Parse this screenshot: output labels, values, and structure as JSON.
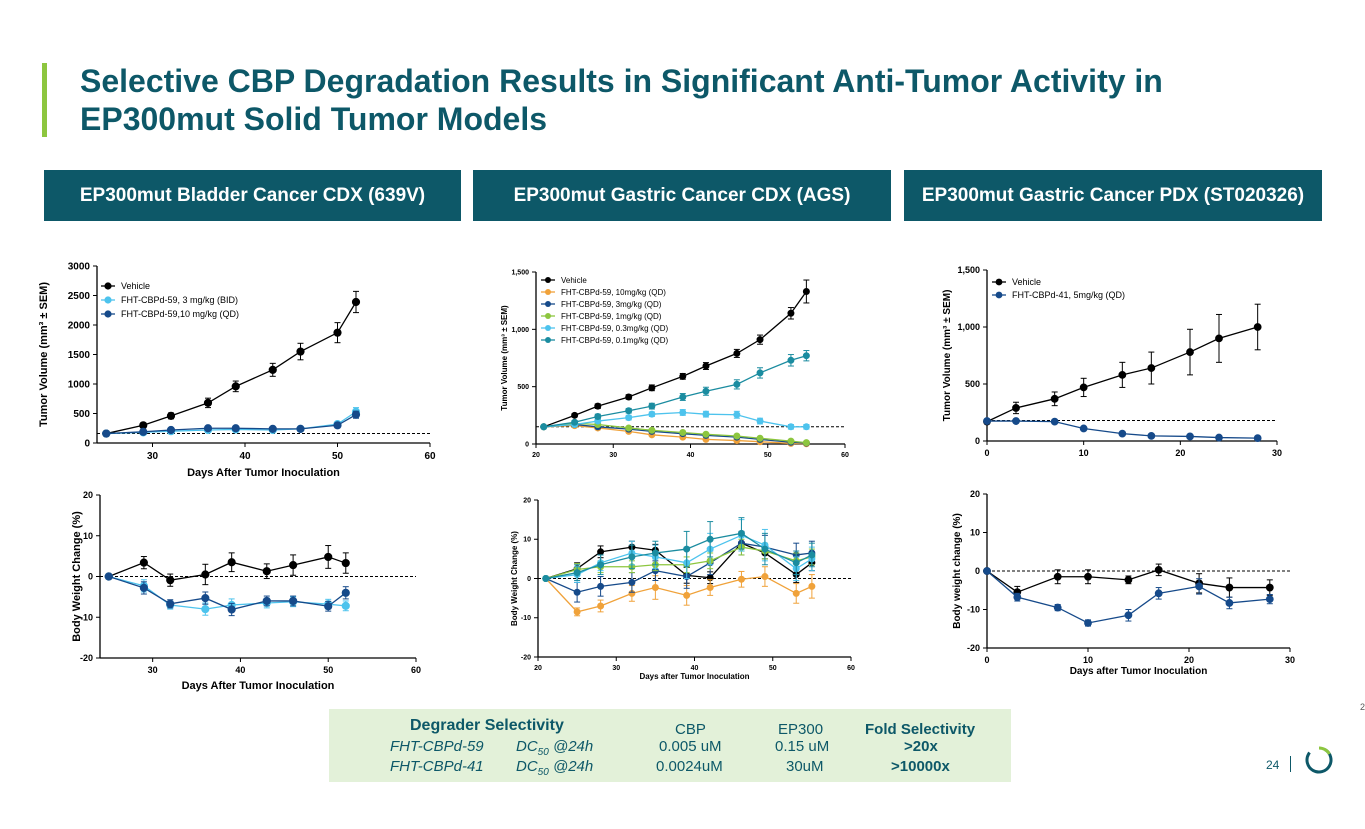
{
  "title": "Selective CBP Degradation Results in Significant Anti-Tumor Activity in EP300mut Solid Tumor Models",
  "panels": [
    {
      "header": "EP300mut Bladder Cancer CDX (639V)"
    },
    {
      "header": "EP300mut Gastric Cancer CDX (AGS)"
    },
    {
      "header": "EP300mut Gastric Cancer PDX (ST020326)"
    }
  ],
  "chart_data": [
    {
      "id": "c1",
      "type": "line",
      "ylabel": "Tumor Volume (mm³ ± SEM)",
      "xlabel": "Days After Tumor Inoculation",
      "xlim": [
        24,
        60
      ],
      "xticks": [
        30,
        40,
        50,
        60
      ],
      "ylim": [
        0,
        3000
      ],
      "yticks": [
        0,
        500,
        1000,
        1500,
        2000,
        2500,
        3000
      ],
      "ytick_labels": [
        "0",
        "500",
        "1000",
        "1500",
        "2000",
        "2500",
        "3000"
      ],
      "baseline": 160,
      "legend": "top-left",
      "series": [
        {
          "name": "Vehicle",
          "color": "#000000",
          "x": [
            25,
            29,
            32,
            36,
            39,
            43,
            46,
            50,
            52
          ],
          "y": [
            160,
            300,
            460,
            680,
            960,
            1240,
            1550,
            1870,
            2390
          ],
          "err": [
            20,
            40,
            50,
            80,
            90,
            110,
            140,
            170,
            180
          ]
        },
        {
          "name": "FHT-CBPd-59, 3 mg/kg (BID)",
          "color": "#4dc3ed",
          "x": [
            25,
            29,
            32,
            36,
            39,
            43,
            46,
            50,
            52
          ],
          "y": [
            160,
            180,
            200,
            220,
            230,
            220,
            240,
            320,
            530
          ],
          "err": [
            20,
            20,
            25,
            30,
            30,
            30,
            30,
            40,
            70
          ]
        },
        {
          "name": "FHT-CBPd-59,10 mg/kg (QD)",
          "color": "#164a8a",
          "x": [
            25,
            29,
            32,
            36,
            39,
            43,
            46,
            50,
            52
          ],
          "y": [
            160,
            190,
            220,
            250,
            250,
            240,
            240,
            300,
            480
          ],
          "err": [
            20,
            20,
            30,
            30,
            30,
            30,
            30,
            40,
            60
          ]
        }
      ]
    },
    {
      "id": "c2",
      "type": "line",
      "ylabel": "Body Weight Change (%)",
      "xlabel": "Days After Tumor Inoculation",
      "xlim": [
        24,
        60
      ],
      "xticks": [
        30,
        40,
        50,
        60
      ],
      "ylim": [
        -20,
        20
      ],
      "yticks": [
        -20,
        -10,
        0,
        10,
        20
      ],
      "ytick_labels": [
        "-20",
        "-10",
        "0",
        "10",
        "20"
      ],
      "baseline": 0,
      "series": [
        {
          "name": "Vehicle",
          "color": "#000000",
          "x": [
            25,
            29,
            32,
            36,
            39,
            43,
            46,
            50,
            52
          ],
          "y": [
            0,
            3.4,
            -0.9,
            0.5,
            3.5,
            1.3,
            2.8,
            4.8,
            3.3
          ],
          "err": [
            0,
            1.5,
            1.5,
            2.5,
            2.3,
            1.8,
            2.5,
            2.8,
            2.5
          ]
        },
        {
          "name": "FHT-CBPd-59, 3 mg/kg (BID)",
          "color": "#4dc3ed",
          "x": [
            25,
            29,
            32,
            36,
            39,
            43,
            46,
            50,
            52
          ],
          "y": [
            0,
            -2.3,
            -7.0,
            -8.0,
            -7.0,
            -6.5,
            -6.2,
            -6.8,
            -7.2
          ],
          "err": [
            0,
            1.5,
            1.0,
            1.5,
            1.5,
            1.2,
            1.2,
            1.2,
            1.2
          ]
        },
        {
          "name": "FHT-CBPd-59,10 mg/kg (QD)",
          "color": "#164a8a",
          "x": [
            25,
            29,
            32,
            36,
            39,
            43,
            46,
            50,
            52
          ],
          "y": [
            0,
            -2.8,
            -6.7,
            -5.3,
            -8.1,
            -6.0,
            -6.0,
            -7.3,
            -4.0
          ],
          "err": [
            0,
            1.5,
            1.0,
            1.5,
            1.5,
            1.2,
            1.2,
            1.2,
            1.5
          ]
        }
      ]
    },
    {
      "id": "c3",
      "type": "line",
      "ylabel": "Tumor Volume (mm³ ± SEM)",
      "xlabel": "",
      "xlim": [
        20,
        60
      ],
      "xticks": [
        20,
        30,
        40,
        50,
        60
      ],
      "ylim": [
        0,
        1500
      ],
      "yticks": [
        0,
        500,
        1000,
        1500
      ],
      "ytick_labels": [
        "0",
        "500",
        "1,000",
        "1,500"
      ],
      "baseline": 150,
      "legend": "top-left",
      "series": [
        {
          "name": "Vehicle",
          "color": "#000000",
          "x": [
            21,
            25,
            28,
            32,
            35,
            39,
            42,
            46,
            49,
            53,
            55
          ],
          "y": [
            150,
            250,
            330,
            410,
            490,
            590,
            680,
            790,
            910,
            1140,
            1330
          ],
          "err": [
            10,
            15,
            20,
            20,
            25,
            25,
            30,
            35,
            40,
            50,
            100
          ]
        },
        {
          "name": "FHT-CBPd-59, 10mg/kg (QD)",
          "color": "#f0a23a",
          "x": [
            21,
            25,
            28,
            32,
            35,
            39,
            42,
            46,
            49,
            53,
            55
          ],
          "y": [
            150,
            160,
            140,
            110,
            80,
            60,
            40,
            30,
            20,
            5,
            2
          ],
          "err": [
            10,
            15,
            15,
            12,
            10,
            10,
            8,
            6,
            5,
            3,
            2
          ]
        },
        {
          "name": "FHT-CBPd-59, 3mg/kg (QD)",
          "color": "#164a8a",
          "x": [
            21,
            25,
            28,
            32,
            35,
            39,
            42,
            46,
            49,
            53,
            55
          ],
          "y": [
            150,
            170,
            150,
            130,
            110,
            90,
            75,
            60,
            40,
            15,
            8
          ],
          "err": [
            10,
            15,
            15,
            12,
            10,
            10,
            8,
            6,
            5,
            3,
            2
          ]
        },
        {
          "name": "FHT-CBPd-59, 1mg/kg (QD)",
          "color": "#8dc63f",
          "x": [
            21,
            25,
            28,
            32,
            35,
            39,
            42,
            46,
            49,
            53,
            55
          ],
          "y": [
            150,
            180,
            170,
            140,
            120,
            100,
            85,
            70,
            50,
            25,
            12
          ],
          "err": [
            10,
            15,
            15,
            12,
            10,
            10,
            8,
            6,
            5,
            4,
            3
          ]
        },
        {
          "name": "FHT-CBPd-59, 0.3mg/kg (QD)",
          "color": "#4dc3ed",
          "x": [
            21,
            25,
            28,
            32,
            35,
            39,
            42,
            46,
            49,
            53,
            55
          ],
          "y": [
            150,
            170,
            200,
            230,
            260,
            275,
            260,
            255,
            200,
            150,
            150
          ],
          "err": [
            10,
            15,
            15,
            20,
            20,
            25,
            25,
            30,
            25,
            20,
            20
          ]
        },
        {
          "name": "FHT-CBPd-59, 0.1mg/kg (QD)",
          "color": "#1b8ca0",
          "x": [
            21,
            25,
            28,
            32,
            35,
            39,
            42,
            46,
            49,
            53,
            55
          ],
          "y": [
            150,
            190,
            240,
            290,
            330,
            410,
            460,
            520,
            620,
            730,
            770
          ],
          "err": [
            10,
            15,
            20,
            20,
            25,
            30,
            35,
            40,
            45,
            50,
            45
          ]
        }
      ]
    },
    {
      "id": "c4",
      "type": "line",
      "ylabel": "Body Weight Change (%)",
      "xlabel": "Days after Tumor Inoculation",
      "xlim": [
        20,
        60
      ],
      "xticks": [
        20,
        30,
        40,
        50,
        60
      ],
      "ylim": [
        -20,
        20
      ],
      "yticks": [
        -20,
        -10,
        0,
        10,
        20
      ],
      "ytick_labels": [
        "-20",
        "-10",
        "0",
        "10",
        "20"
      ],
      "baseline": 0,
      "series": [
        {
          "name": "Vehicle",
          "color": "#000000",
          "x": [
            21,
            25,
            28,
            32,
            35,
            39,
            42,
            46,
            49,
            53,
            55
          ],
          "y": [
            0,
            2.5,
            6.8,
            8.0,
            7.2,
            0.8,
            0.2,
            9.0,
            6.5,
            1.0,
            4.0
          ],
          "err": [
            0,
            1.5,
            1.5,
            1.5,
            1.5,
            2.0,
            1.5,
            2.0,
            1.5,
            2.0,
            2.0
          ]
        },
        {
          "name": "FHT-CBPd-59, 10mg/kg (QD)",
          "color": "#f0a23a",
          "x": [
            21,
            25,
            28,
            32,
            35,
            39,
            42,
            46,
            49,
            53,
            55
          ],
          "y": [
            0,
            -8.5,
            -7.0,
            -3.8,
            -2.3,
            -4.3,
            -2.3,
            -0.2,
            0.5,
            -3.8,
            -2.0
          ],
          "err": [
            0,
            1.0,
            1.5,
            2.0,
            3.0,
            2.5,
            2.0,
            2.0,
            2.5,
            2.5,
            3.0
          ]
        },
        {
          "name": "FHT-CBPd-59, 3mg/kg (QD)",
          "color": "#164a8a",
          "x": [
            21,
            25,
            28,
            32,
            35,
            39,
            42,
            46,
            49,
            53,
            55
          ],
          "y": [
            0,
            -3.5,
            -2.0,
            -1.0,
            2.0,
            0.5,
            4.0,
            9.0,
            8.0,
            6.0,
            6.5
          ],
          "err": [
            0,
            2.5,
            2.5,
            2.5,
            2.5,
            3.0,
            3.0,
            3.0,
            3.0,
            3.0,
            3.0
          ]
        },
        {
          "name": "FHT-CBPd-59, 1mg/kg (QD)",
          "color": "#8dc63f",
          "x": [
            21,
            25,
            28,
            32,
            35,
            39,
            42,
            46,
            49,
            53,
            55
          ],
          "y": [
            0,
            2.3,
            3.0,
            3.0,
            3.5,
            3.5,
            4.5,
            8.0,
            7.0,
            4.5,
            5.5
          ],
          "err": [
            0,
            1.5,
            1.5,
            1.5,
            1.5,
            2.0,
            2.0,
            2.0,
            2.0,
            2.0,
            2.0
          ]
        },
        {
          "name": "FHT-CBPd-59, 0.3mg/kg (QD)",
          "color": "#4dc3ed",
          "x": [
            21,
            25,
            28,
            32,
            35,
            39,
            42,
            46,
            49,
            53,
            55
          ],
          "y": [
            0,
            1.0,
            4.0,
            6.5,
            5.5,
            4.0,
            7.5,
            11.0,
            8.5,
            2.5,
            5.0
          ],
          "err": [
            0,
            2.0,
            2.0,
            3.0,
            3.0,
            4.0,
            4.0,
            4.0,
            4.0,
            3.0,
            3.0
          ]
        },
        {
          "name": "FHT-CBPd-59, 0.1mg/kg (QD)",
          "color": "#1b8ca0",
          "x": [
            21,
            25,
            28,
            32,
            35,
            39,
            42,
            46,
            49,
            53,
            55
          ],
          "y": [
            0,
            1.5,
            3.5,
            5.5,
            6.5,
            7.5,
            10.0,
            11.5,
            7.5,
            4.0,
            6.0
          ],
          "err": [
            0,
            2.0,
            2.5,
            3.0,
            3.0,
            4.5,
            4.5,
            4.0,
            4.0,
            3.0,
            3.0
          ]
        }
      ]
    },
    {
      "id": "c5",
      "type": "line",
      "ylabel": "Tumor Volume (mm³ ± SEM)",
      "xlabel": "",
      "xlim": [
        0,
        30
      ],
      "xticks": [
        0,
        10,
        20,
        30
      ],
      "ylim": [
        0,
        1500
      ],
      "yticks": [
        0,
        500,
        1000,
        1500
      ],
      "ytick_labels": [
        "0",
        "500",
        "1,000",
        "1,500"
      ],
      "baseline": 180,
      "legend": "top-left",
      "series": [
        {
          "name": "Vehicle",
          "color": "#000000",
          "x": [
            0,
            3,
            7,
            10,
            14,
            17,
            21,
            24,
            28
          ],
          "y": [
            170,
            290,
            370,
            470,
            580,
            640,
            780,
            900,
            1000
          ],
          "err": [
            20,
            50,
            60,
            80,
            110,
            140,
            200,
            210,
            200
          ]
        },
        {
          "name": "FHT-CBPd-41, 5mg/kg (QD)",
          "color": "#164a8a",
          "x": [
            0,
            3,
            7,
            10,
            14,
            17,
            21,
            24,
            28
          ],
          "y": [
            175,
            175,
            170,
            110,
            65,
            45,
            40,
            30,
            25
          ],
          "err": [
            15,
            15,
            15,
            10,
            10,
            8,
            8,
            6,
            5
          ]
        }
      ]
    },
    {
      "id": "c6",
      "type": "line",
      "ylabel": "Body weight change (%)",
      "xlabel": "Days after Tumor Inoculation",
      "xlim": [
        0,
        30
      ],
      "xticks": [
        0,
        10,
        20,
        30
      ],
      "ylim": [
        -20,
        20
      ],
      "yticks": [
        -20,
        -10,
        0,
        10,
        20
      ],
      "ytick_labels": [
        "-20",
        "-10",
        "0",
        "10",
        "20"
      ],
      "baseline": 0,
      "series": [
        {
          "name": "Vehicle",
          "color": "#000000",
          "x": [
            0,
            3,
            7,
            10,
            14,
            17,
            21,
            24,
            28
          ],
          "y": [
            0,
            -5.5,
            -1.5,
            -1.5,
            -2.3,
            0.3,
            -3.2,
            -4.3,
            -4.3
          ],
          "err": [
            0,
            1.5,
            1.8,
            1.8,
            1.0,
            1.5,
            2.5,
            2.5,
            2.0
          ]
        },
        {
          "name": "FHT-CBPd-41, 5mg/kg (QD)",
          "color": "#164a8a",
          "x": [
            0,
            3,
            7,
            10,
            14,
            17,
            21,
            24,
            28
          ],
          "y": [
            0,
            -6.8,
            -9.5,
            -13.5,
            -11.5,
            -5.8,
            -4.0,
            -8.3,
            -7.3
          ],
          "err": [
            0,
            1.0,
            0.8,
            0.8,
            1.5,
            1.5,
            2.0,
            1.5,
            1.2
          ]
        }
      ]
    }
  ],
  "selectivity": {
    "header_degrader": "Degrader Selectivity",
    "header_cbp": "CBP",
    "header_ep300": "EP300",
    "header_fold": "Fold Selectivity",
    "rows": [
      {
        "name": "FHT-CBPd-59",
        "dc_prefix": "DC",
        "dc_sub": "50",
        "dc_suffix": " @24h",
        "cbp": "0.005 uM",
        "ep300": "0.15 uM",
        "fold": ">20x"
      },
      {
        "name": "FHT-CBPd-41",
        "dc_prefix": "DC",
        "dc_sub": "50",
        "dc_suffix": " @24h",
        "cbp": "0.0024uM",
        "ep300": "30uM",
        "fold": ">10000x"
      }
    ]
  },
  "footer": {
    "page": "24",
    "corner": "2"
  },
  "colors": {
    "brand": "#0d5868",
    "accent": "#8dc63f",
    "table_bg": "#e3f1d9"
  }
}
